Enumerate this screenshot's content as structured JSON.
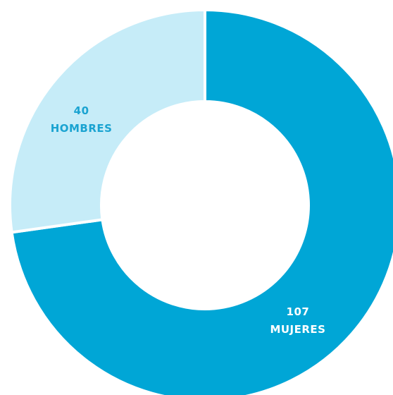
{
  "chart_data": {
    "type": "pie",
    "variant": "donut",
    "slices": [
      {
        "value": 107,
        "value_label": "107",
        "label": "MUJERES",
        "color": "#00A6D6",
        "text_color": "#ffffff"
      },
      {
        "value": 40,
        "value_label": "40",
        "label": "HOMBRES",
        "color": "#C6ECF8",
        "text_color": "#1AA3D1"
      }
    ],
    "start_angle_deg": 0,
    "direction": "clockwise"
  }
}
